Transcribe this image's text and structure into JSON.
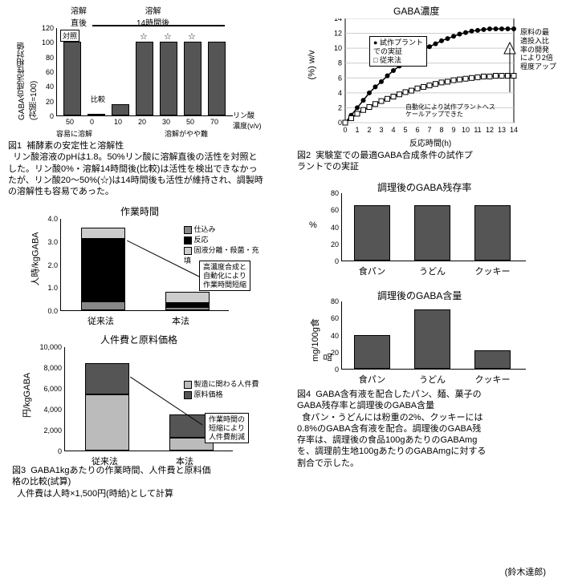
{
  "fig1": {
    "header_left": "溶解\n直後",
    "header_right": "溶解\n14時間後",
    "ylabel": "GABA合成活性相対値\n(対照=100)",
    "xlabel": "リン酸\n濃度(v/v)",
    "ytick_max": 120,
    "ytick_step": 20,
    "categories": [
      "50",
      "0",
      "10",
      "20",
      "30",
      "50",
      "70"
    ],
    "values": [
      100,
      0,
      15,
      100,
      100,
      100,
      100
    ],
    "bar_colors": [
      "#555",
      "#555",
      "#555",
      "#555",
      "#555",
      "#555",
      "#555"
    ],
    "taisho": "対照",
    "hikaku": "比較",
    "stars_at": [
      3,
      4,
      5
    ],
    "note_left": "容易に溶解",
    "note_right": "溶解がやや難",
    "caption": "図1  補酵素の安定性と溶解性\n  リン酸溶液のpHは1.8。50%リン酸に溶解直後の活性を対照とした。リン酸0%・溶解14時間後(比較)は活性を検出できなかったが、リン酸20～50%(☆)は14時間後も活性が維持され、調製時の溶解性も容易であった。"
  },
  "fig2": {
    "title": "GABA濃度",
    "ylabel": "(%) w/v",
    "xlabel": "反応時間(h)",
    "xrange": [
      0,
      14
    ],
    "yrange": [
      0,
      14
    ],
    "ytick_step": 2,
    "xtick_step": 1,
    "series1_label": "試作プラント\nでの実証",
    "series2_label": "従来法",
    "series1_color": "#000",
    "series1_marker": "filled-circle",
    "series2_color": "#000",
    "series2_marker": "open-square",
    "series1": [
      [
        0,
        0
      ],
      [
        0.5,
        1.0
      ],
      [
        1,
        2.0
      ],
      [
        1.5,
        3.0
      ],
      [
        2,
        4.0
      ],
      [
        2.5,
        4.8
      ],
      [
        3,
        5.5
      ],
      [
        3.5,
        6.3
      ],
      [
        4,
        7.0
      ],
      [
        4.5,
        7.6
      ],
      [
        5,
        8.2
      ],
      [
        5.5,
        8.8
      ],
      [
        6,
        9.3
      ],
      [
        6.5,
        9.8
      ],
      [
        7,
        10.2
      ],
      [
        7.5,
        10.6
      ],
      [
        8,
        11.0
      ],
      [
        8.5,
        11.3
      ],
      [
        9,
        11.6
      ],
      [
        9.5,
        11.9
      ],
      [
        10,
        12.1
      ],
      [
        10.5,
        12.3
      ],
      [
        11,
        12.4
      ],
      [
        11.5,
        12.5
      ],
      [
        12,
        12.6
      ],
      [
        12.5,
        12.6
      ],
      [
        13,
        12.6
      ],
      [
        13.5,
        12.6
      ],
      [
        14,
        12.6
      ]
    ],
    "series2": [
      [
        0,
        0
      ],
      [
        0.5,
        0.6
      ],
      [
        1,
        1.2
      ],
      [
        1.5,
        1.7
      ],
      [
        2,
        2.1
      ],
      [
        2.5,
        2.5
      ],
      [
        3,
        2.9
      ],
      [
        3.5,
        3.2
      ],
      [
        4,
        3.5
      ],
      [
        4.5,
        3.8
      ],
      [
        5,
        4.1
      ],
      [
        5.5,
        4.3
      ],
      [
        6,
        4.6
      ],
      [
        6.5,
        4.8
      ],
      [
        7,
        5.0
      ],
      [
        7.5,
        5.2
      ],
      [
        8,
        5.4
      ],
      [
        8.5,
        5.5
      ],
      [
        9,
        5.7
      ],
      [
        9.5,
        5.8
      ],
      [
        10,
        5.9
      ],
      [
        10.5,
        6.0
      ],
      [
        11,
        6.1
      ],
      [
        11.5,
        6.2
      ],
      [
        12,
        6.2
      ],
      [
        12.5,
        6.3
      ],
      [
        13,
        6.3
      ],
      [
        13.5,
        6.3
      ],
      [
        14,
        6.3
      ]
    ],
    "arrow_note": "原料の最\n適投入比\n率の開発\nにより2倍\n程度アップ",
    "inner_note": "自動化により試作プラントへス\nケールアップできた",
    "caption": "図2  実験室での最適GABA合成条件の試作プ\nラントでの実証"
  },
  "fig3a": {
    "title": "作業時間",
    "ylabel": "人時/kgGABA",
    "yrange": [
      0,
      4.0
    ],
    "ytick_step": 1.0,
    "categories": [
      "従来法",
      "本法"
    ],
    "stacks": [
      {
        "label": "仕込み",
        "color": "#888",
        "values": [
          0.4,
          0.15
        ]
      },
      {
        "label": "反応",
        "color": "#000",
        "values": [
          2.7,
          0.15
        ]
      },
      {
        "label": "固液分離・殺菌・充填",
        "color": "#ccc",
        "values": [
          0.5,
          0.5
        ]
      }
    ],
    "annotation": "高濃度合成と\n自動化により\n作業時間短縮"
  },
  "fig3b": {
    "title": "人件費と原料価格",
    "ylabel": "円/kgGABA",
    "yrange": [
      0,
      10000
    ],
    "ytick_step": 2000,
    "categories": [
      "従来法",
      "本法"
    ],
    "stacks": [
      {
        "label": "製造に関わる人件費",
        "color": "#bbb",
        "values": [
          5400,
          1200
        ]
      },
      {
        "label": "原料価格",
        "color": "#555",
        "values": [
          3000,
          2300
        ]
      }
    ],
    "annotation": "作業時間の\n短縮により\n人件費削減",
    "caption": "図3  GABA1kgあたりの作業時間、人件費と原料価\n格の比較(試算)\n  人件費は人時×1,500円(時給)として計算"
  },
  "fig4a": {
    "title": "調理後のGABA残存率",
    "ylabel": "%",
    "yrange": [
      0,
      80
    ],
    "ytick_step": 20,
    "categories": [
      "食パン",
      "うどん",
      "クッキー"
    ],
    "values": [
      65,
      65,
      65
    ],
    "bar_color": "#555"
  },
  "fig4b": {
    "title": "調理後のGABA含量",
    "ylabel": "mg/100g食品",
    "yrange": [
      0,
      80
    ],
    "ytick_step": 20,
    "categories": [
      "食パン",
      "うどん",
      "クッキー"
    ],
    "values": [
      40,
      70,
      22
    ],
    "bar_color": "#555",
    "caption": "図4  GABA含有液を配合したパン、麺、菓子の\nGABA残存率と調理後のGABA含量\n  食パン・うどんには粉重の2%、クッキーには\n0.8%のGABA含有液を配合。調理後のGABA残\n存率は、調理後の食品100gあたりのGABAmg\nを、調理前生地100gあたりのGABAmgに対する\n割合で示した。"
  },
  "author": "(鈴木達郎)"
}
